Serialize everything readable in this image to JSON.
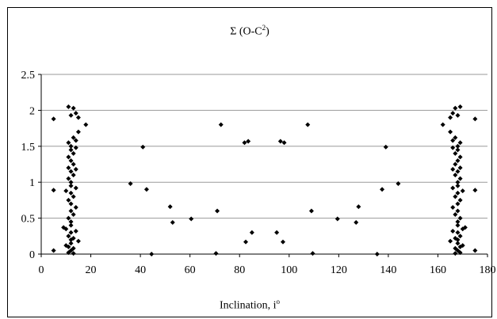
{
  "chart_data": {
    "type": "scatter",
    "title": "Σ (O-C",
    "title_sup": "2",
    "title_suffix": ")",
    "xlabel": "Inclination, i",
    "xlabel_sup": "o",
    "ylabel": "",
    "xlim": [
      0,
      180
    ],
    "ylim": [
      0,
      2.5
    ],
    "x_ticks": [
      0,
      20,
      40,
      60,
      80,
      100,
      120,
      140,
      160,
      180
    ],
    "y_ticks": [
      0,
      0.5,
      1,
      1.5,
      2,
      2.5
    ],
    "y_tick_labels": [
      "0",
      "0.5",
      "1",
      "1.5",
      "2",
      "2.5"
    ],
    "grid": "horizontal",
    "legend": "none",
    "marker": "diamond",
    "marker_color": "#000000",
    "series": [
      {
        "points": [
          [
            5,
            1.88
          ],
          [
            5,
            0.89
          ],
          [
            5,
            0.05
          ],
          [
            9,
            0.37
          ],
          [
            10,
            0.88
          ],
          [
            10,
            0.35
          ],
          [
            10,
            0.12
          ],
          [
            11,
            2.05
          ],
          [
            11,
            1.55
          ],
          [
            11,
            1.35
          ],
          [
            11,
            1.2
          ],
          [
            11,
            1.05
          ],
          [
            11,
            0.75
          ],
          [
            11,
            0.5
          ],
          [
            11,
            0.25
          ],
          [
            11,
            0.1
          ],
          [
            11,
            0.02
          ],
          [
            12,
            1.93
          ],
          [
            12,
            1.5
          ],
          [
            12,
            1.45
          ],
          [
            12,
            1.3
          ],
          [
            12,
            1.15
          ],
          [
            12,
            1.0
          ],
          [
            12,
            0.95
          ],
          [
            12,
            0.85
          ],
          [
            12,
            0.7
          ],
          [
            12,
            0.6
          ],
          [
            12,
            0.45
          ],
          [
            12,
            0.4
          ],
          [
            12,
            0.3
          ],
          [
            12,
            0.2
          ],
          [
            12,
            0.15
          ],
          [
            12,
            0.05
          ],
          [
            13,
            2.03
          ],
          [
            13,
            1.62
          ],
          [
            13,
            1.4
          ],
          [
            13,
            1.25
          ],
          [
            13,
            1.1
          ],
          [
            13,
            0.8
          ],
          [
            13,
            0.55
          ],
          [
            13,
            0.22
          ],
          [
            13,
            0.08
          ],
          [
            13,
            0.01
          ],
          [
            14,
            1.96
          ],
          [
            14,
            1.58
          ],
          [
            14,
            1.48
          ],
          [
            14,
            1.18
          ],
          [
            14,
            0.92
          ],
          [
            14,
            0.65
          ],
          [
            14,
            0.32
          ],
          [
            15,
            1.9
          ],
          [
            15,
            1.7
          ],
          [
            15,
            0.18
          ],
          [
            18,
            1.8
          ],
          [
            36,
            0.98
          ],
          [
            41,
            1.49
          ],
          [
            42.5,
            0.9
          ],
          [
            44.5,
            0.0
          ],
          [
            52,
            0.66
          ],
          [
            53,
            0.44
          ],
          [
            60.5,
            0.49
          ],
          [
            70.5,
            0.01
          ],
          [
            71,
            0.6
          ],
          [
            72.5,
            1.8
          ],
          [
            82,
            1.55
          ],
          [
            82.5,
            0.17
          ],
          [
            83.5,
            1.57
          ],
          [
            85,
            0.3
          ],
          [
            95,
            0.3
          ],
          [
            96.5,
            1.57
          ],
          [
            97.5,
            0.17
          ],
          [
            98,
            1.55
          ],
          [
            107.5,
            1.8
          ],
          [
            109,
            0.6
          ],
          [
            109.5,
            0.01
          ],
          [
            119.5,
            0.49
          ],
          [
            127,
            0.44
          ],
          [
            128,
            0.66
          ],
          [
            135.5,
            0.0
          ],
          [
            137.5,
            0.9
          ],
          [
            139,
            1.49
          ],
          [
            144,
            0.98
          ],
          [
            162,
            1.8
          ],
          [
            165,
            1.9
          ],
          [
            165,
            1.7
          ],
          [
            165,
            0.18
          ],
          [
            166,
            1.96
          ],
          [
            166,
            1.58
          ],
          [
            166,
            1.48
          ],
          [
            166,
            1.18
          ],
          [
            166,
            0.92
          ],
          [
            166,
            0.65
          ],
          [
            166,
            0.32
          ],
          [
            167,
            2.03
          ],
          [
            167,
            1.62
          ],
          [
            167,
            1.4
          ],
          [
            167,
            1.25
          ],
          [
            167,
            1.1
          ],
          [
            167,
            0.8
          ],
          [
            167,
            0.55
          ],
          [
            167,
            0.22
          ],
          [
            167,
            0.08
          ],
          [
            167,
            0.01
          ],
          [
            168,
            1.93
          ],
          [
            168,
            1.5
          ],
          [
            168,
            1.45
          ],
          [
            168,
            1.3
          ],
          [
            168,
            1.15
          ],
          [
            168,
            1.0
          ],
          [
            168,
            0.95
          ],
          [
            168,
            0.85
          ],
          [
            168,
            0.7
          ],
          [
            168,
            0.6
          ],
          [
            168,
            0.45
          ],
          [
            168,
            0.4
          ],
          [
            168,
            0.3
          ],
          [
            168,
            0.2
          ],
          [
            168,
            0.15
          ],
          [
            168,
            0.05
          ],
          [
            169,
            2.05
          ],
          [
            169,
            1.55
          ],
          [
            169,
            1.35
          ],
          [
            169,
            1.2
          ],
          [
            169,
            1.05
          ],
          [
            169,
            0.75
          ],
          [
            169,
            0.5
          ],
          [
            169,
            0.25
          ],
          [
            169,
            0.1
          ],
          [
            169,
            0.02
          ],
          [
            170,
            0.88
          ],
          [
            170,
            0.35
          ],
          [
            170,
            0.12
          ],
          [
            171,
            0.37
          ],
          [
            175,
            1.88
          ],
          [
            175,
            0.89
          ],
          [
            175,
            0.05
          ]
        ]
      }
    ]
  }
}
